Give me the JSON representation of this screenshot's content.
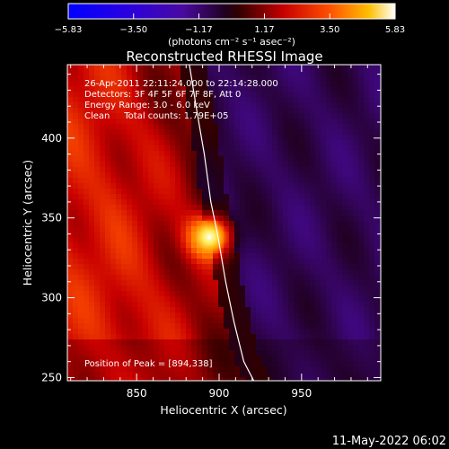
{
  "chart_data": {
    "type": "heatmap",
    "title": "Reconstructed RHESSI Image",
    "xlabel": "Heliocentric X (arcsec)",
    "ylabel": "Heliocentric Y (arcsec)",
    "xlim": [
      808,
      998
    ],
    "ylim": [
      248,
      446
    ],
    "x_ticks": [
      850,
      900,
      950
    ],
    "y_ticks": [
      250,
      300,
      350,
      400
    ],
    "colorbar": {
      "label": "(photons cm⁻² s⁻¹ asec⁻²)",
      "range": [
        -5.83,
        5.83
      ],
      "ticks": [
        -5.83,
        -3.5,
        -1.17,
        1.17,
        3.5,
        5.83
      ],
      "tick_labels": [
        "−5.83",
        "−3.50",
        "−1.17",
        "1.17",
        "3.50",
        "5.83"
      ]
    },
    "annotations": [
      "26-Apr-2011 22:11:24.000 to 22:14:28.000",
      "Detectors: 3F 4F 5F 6F 7F 8F, Att 0",
      "Energy Range: 3.0 - 6.0 keV",
      "Clean     Total counts: 1.79E+05"
    ],
    "peak_label": "Position of Peak = [894,338]",
    "peak": {
      "x": 894,
      "y": 338
    },
    "limb": [
      [
        882,
        446
      ],
      [
        886,
        420
      ],
      [
        891,
        390
      ],
      [
        895,
        360
      ],
      [
        899,
        340
      ],
      [
        904,
        310
      ],
      [
        909,
        285
      ],
      [
        915,
        260
      ],
      [
        921,
        248
      ]
    ],
    "colors": {
      "background": "#000000",
      "limb": "#ffffff"
    }
  },
  "footer_timestamp": "11-May-2022 06:02"
}
